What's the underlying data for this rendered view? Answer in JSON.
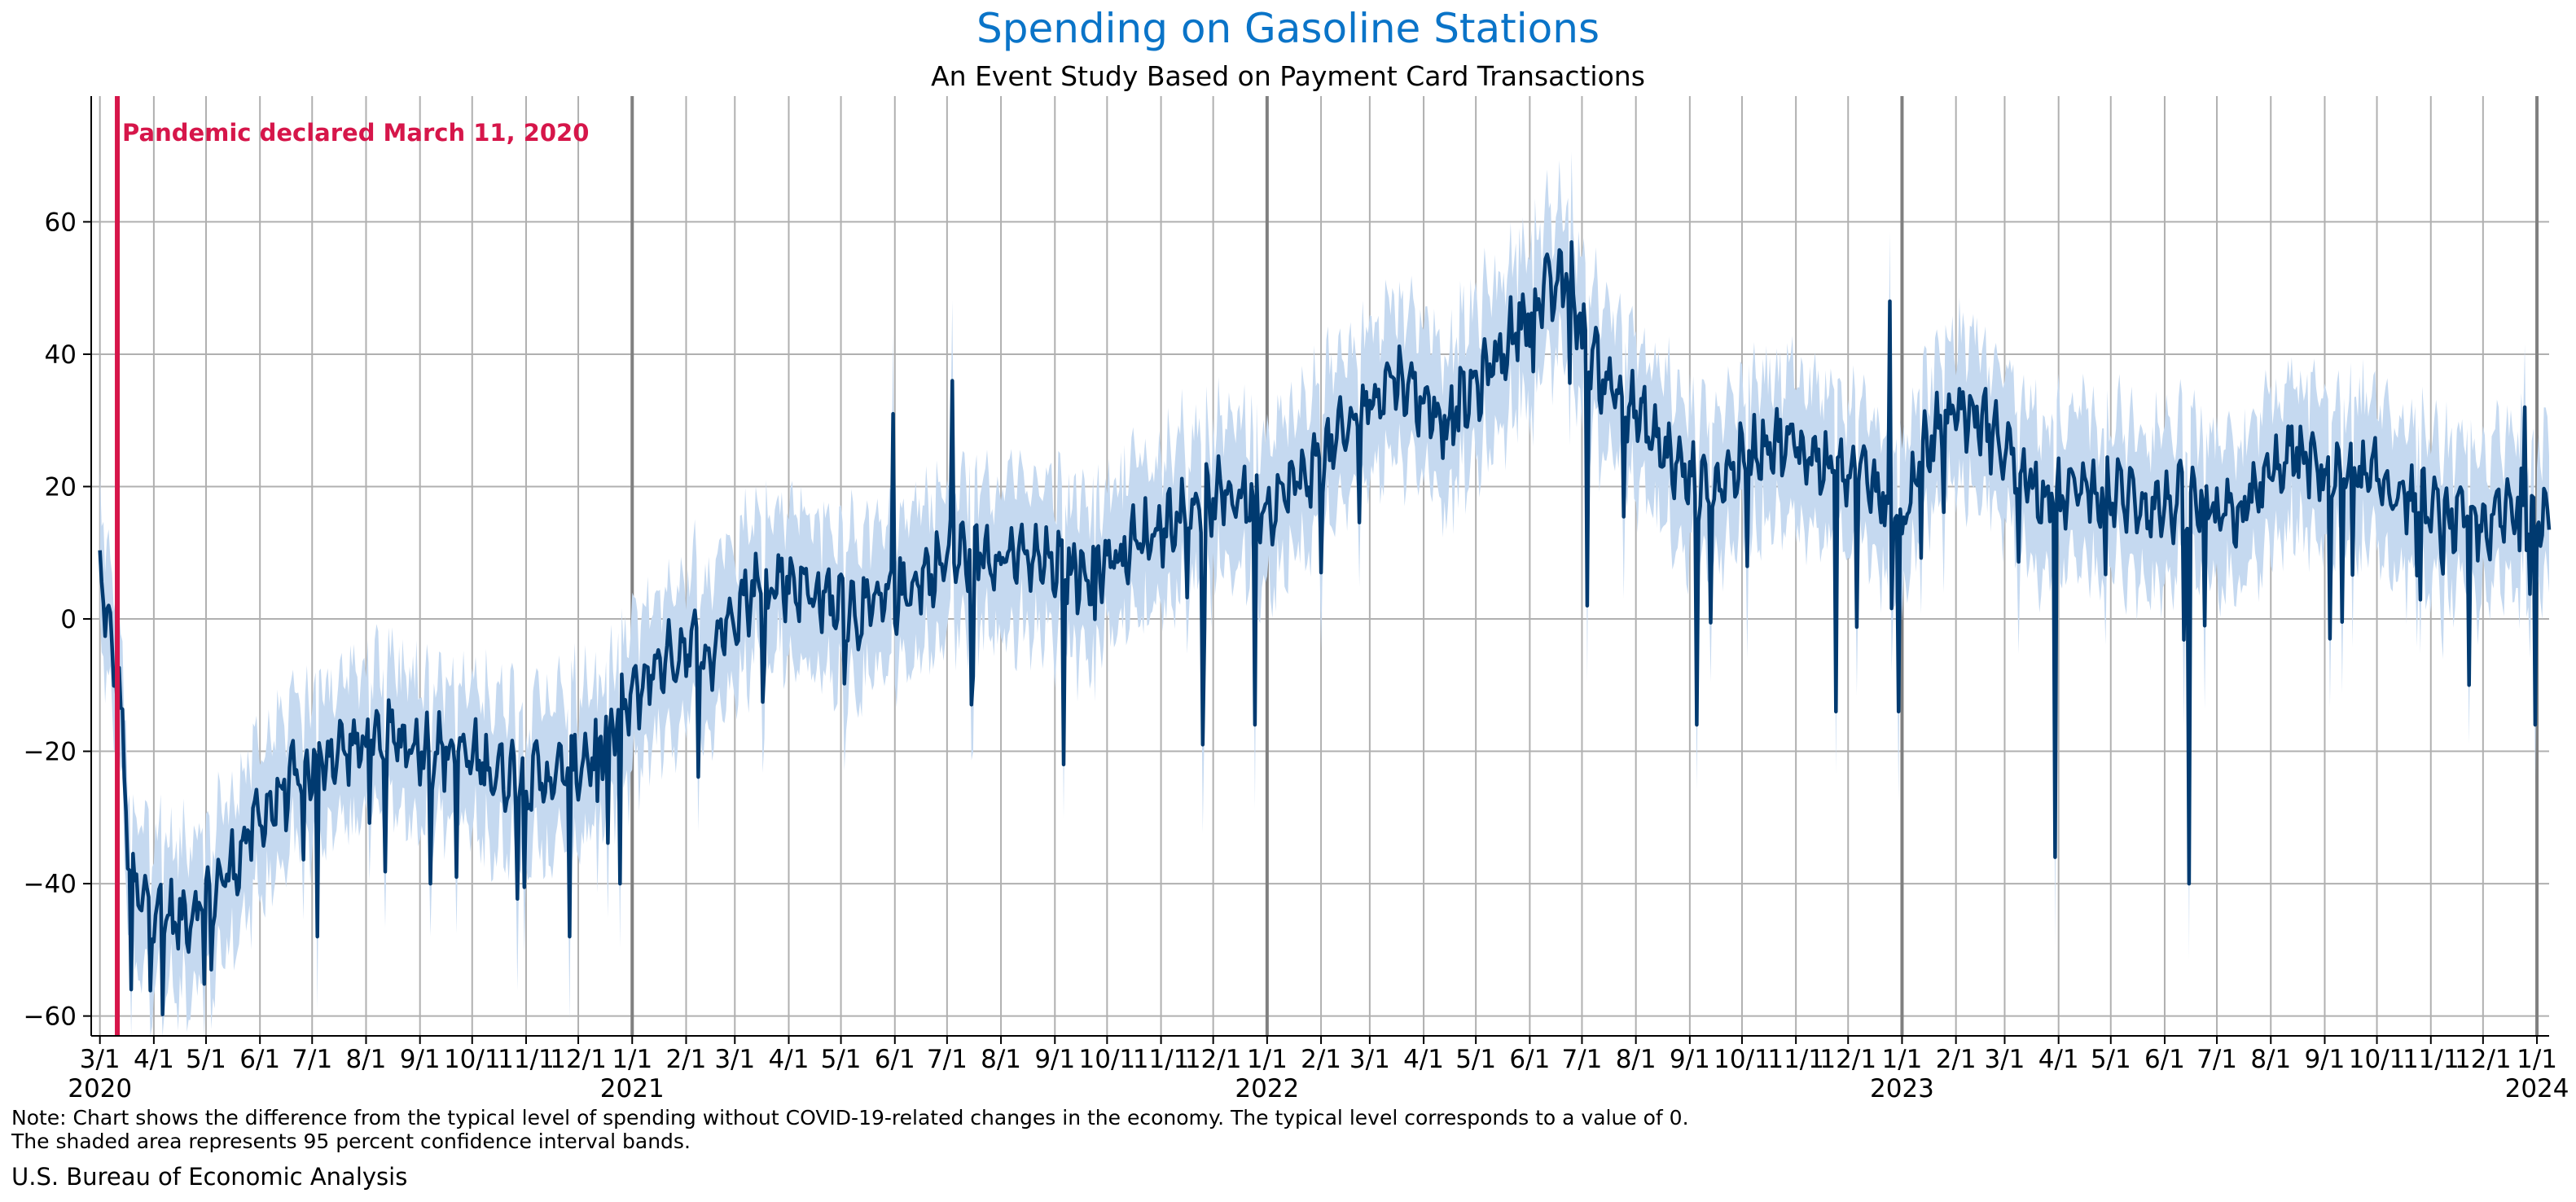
{
  "chart_data": {
    "type": "line",
    "title": "Spending on Gasoline Stations",
    "subtitle": "An Event Study Based on Payment Card Transactions",
    "xlabel": "",
    "ylabel": "",
    "ylim": [
      -63,
      79
    ],
    "yticks": [
      -60,
      -40,
      -20,
      0,
      20,
      40,
      60
    ],
    "grid": true,
    "xlim": [
      "2020-02-25",
      "2024-01-08"
    ],
    "month_tick_labels": [
      "3/1",
      "4/1",
      "5/1",
      "6/1",
      "7/1",
      "8/1",
      "9/1",
      "10/1",
      "11/1",
      "12/1",
      "1/1",
      "2/1",
      "3/1",
      "4/1",
      "5/1",
      "6/1",
      "7/1",
      "8/1",
      "9/1",
      "10/1",
      "11/1",
      "12/1",
      "1/1",
      "2/1",
      "3/1",
      "4/1",
      "5/1",
      "6/1",
      "7/1",
      "8/1",
      "9/1",
      "10/1",
      "11/1",
      "12/1",
      "1/1",
      "2/1",
      "3/1",
      "4/1",
      "5/1",
      "6/1",
      "7/1",
      "8/1",
      "9/1",
      "10/1",
      "11/1",
      "12/1",
      "1/1"
    ],
    "year_tick_labels": [
      "2020",
      "2021",
      "2022",
      "2023",
      "2024"
    ],
    "annotation": {
      "text": "Pandemic declared March 11, 2020",
      "date": "2020-03-11"
    },
    "series": [
      {
        "name": "",
        "color": "#003a70",
        "band_color": "#c5d9f0",
        "ci_half_width": 10,
        "points": [
          [
            "2020-03-01",
            8
          ],
          [
            "2020-03-08",
            -6
          ],
          [
            "2020-03-12",
            -9
          ],
          [
            "2020-03-16",
            -30
          ],
          [
            "2020-03-21",
            -42
          ],
          [
            "2020-04-01",
            -43
          ],
          [
            "2020-04-15",
            -46
          ],
          [
            "2020-05-01",
            -42
          ],
          [
            "2020-05-15",
            -38
          ],
          [
            "2020-06-01",
            -30
          ],
          [
            "2020-06-15",
            -26
          ],
          [
            "2020-07-01",
            -22
          ],
          [
            "2020-07-15",
            -20
          ],
          [
            "2020-08-01",
            -19
          ],
          [
            "2020-08-15",
            -18
          ],
          [
            "2020-09-01",
            -19
          ],
          [
            "2020-09-15",
            -20
          ],
          [
            "2020-10-01",
            -21
          ],
          [
            "2020-10-15",
            -23
          ],
          [
            "2020-11-01",
            -24
          ],
          [
            "2020-11-15",
            -24
          ],
          [
            "2020-12-01",
            -22
          ],
          [
            "2020-12-15",
            -19
          ],
          [
            "2021-01-01",
            -12
          ],
          [
            "2021-01-15",
            -7
          ],
          [
            "2021-02-01",
            -4
          ],
          [
            "2021-02-15",
            -5
          ],
          [
            "2021-03-01",
            2
          ],
          [
            "2021-03-15",
            5
          ],
          [
            "2021-04-01",
            6
          ],
          [
            "2021-04-15",
            4
          ],
          [
            "2021-05-01",
            2
          ],
          [
            "2021-05-15",
            1
          ],
          [
            "2021-06-01",
            3
          ],
          [
            "2021-06-15",
            6
          ],
          [
            "2021-07-01",
            9
          ],
          [
            "2021-07-15",
            10
          ],
          [
            "2021-08-01",
            10
          ],
          [
            "2021-08-15",
            9
          ],
          [
            "2021-09-01",
            8
          ],
          [
            "2021-09-15",
            7
          ],
          [
            "2021-10-01",
            9
          ],
          [
            "2021-10-15",
            11
          ],
          [
            "2021-11-01",
            14
          ],
          [
            "2021-11-15",
            16
          ],
          [
            "2021-12-01",
            18
          ],
          [
            "2021-12-15",
            19
          ],
          [
            "2022-01-01",
            17
          ],
          [
            "2022-01-15",
            20
          ],
          [
            "2022-02-01",
            24
          ],
          [
            "2022-02-15",
            28
          ],
          [
            "2022-03-01",
            33
          ],
          [
            "2022-03-15",
            37
          ],
          [
            "2022-04-01",
            33
          ],
          [
            "2022-04-15",
            30
          ],
          [
            "2022-05-01",
            35
          ],
          [
            "2022-05-15",
            40
          ],
          [
            "2022-06-01",
            47
          ],
          [
            "2022-06-15",
            50
          ],
          [
            "2022-06-25",
            52
          ],
          [
            "2022-07-01",
            42
          ],
          [
            "2022-07-15",
            36
          ],
          [
            "2022-08-01",
            31
          ],
          [
            "2022-08-15",
            26
          ],
          [
            "2022-09-01",
            21
          ],
          [
            "2022-09-15",
            20
          ],
          [
            "2022-10-01",
            24
          ],
          [
            "2022-10-15",
            27
          ],
          [
            "2022-11-01",
            26
          ],
          [
            "2022-11-15",
            24
          ],
          [
            "2022-12-01",
            22
          ],
          [
            "2022-12-15",
            20
          ],
          [
            "2023-01-01",
            14
          ],
          [
            "2023-01-15",
            26
          ],
          [
            "2023-02-01",
            32
          ],
          [
            "2023-02-15",
            30
          ],
          [
            "2023-03-01",
            26
          ],
          [
            "2023-03-15",
            21
          ],
          [
            "2023-04-01",
            18
          ],
          [
            "2023-04-15",
            20
          ],
          [
            "2023-05-01",
            19
          ],
          [
            "2023-05-15",
            18
          ],
          [
            "2023-06-01",
            17
          ],
          [
            "2023-06-15",
            18
          ],
          [
            "2023-07-01",
            15
          ],
          [
            "2023-07-15",
            16
          ],
          [
            "2023-08-01",
            22
          ],
          [
            "2023-08-15",
            25
          ],
          [
            "2023-09-01",
            22
          ],
          [
            "2023-09-15",
            21
          ],
          [
            "2023-10-01",
            21
          ],
          [
            "2023-10-15",
            19
          ],
          [
            "2023-11-01",
            16
          ],
          [
            "2023-11-15",
            15
          ],
          [
            "2023-12-01",
            14
          ],
          [
            "2023-12-15",
            16
          ],
          [
            "2024-01-01",
            17
          ],
          [
            "2024-01-08",
            15
          ]
        ],
        "dips": [
          [
            "2020-03-19",
            -56
          ],
          [
            "2020-05-04",
            -53
          ],
          [
            "2020-07-04",
            -48
          ],
          [
            "2020-09-07",
            -40
          ],
          [
            "2020-11-26",
            -48
          ],
          [
            "2020-12-25",
            -40
          ],
          [
            "2021-05-31",
            31
          ],
          [
            "2021-07-04",
            36
          ],
          [
            "2021-09-06",
            -22
          ],
          [
            "2021-11-25",
            -19
          ],
          [
            "2021-12-25",
            -16
          ],
          [
            "2022-07-04",
            2
          ],
          [
            "2022-09-05",
            -16
          ],
          [
            "2022-11-24",
            -14
          ],
          [
            "2022-12-25",
            48
          ],
          [
            "2022-12-30",
            -14
          ],
          [
            "2023-03-30",
            -36
          ],
          [
            "2023-06-15",
            -40
          ],
          [
            "2023-09-04",
            -3
          ],
          [
            "2023-11-23",
            -10
          ],
          [
            "2023-12-25",
            32
          ],
          [
            "2023-12-31",
            -16
          ]
        ]
      }
    ]
  },
  "note_line_1": "Note: Chart shows the difference from the typical level of spending without COVID-19-related changes in the economy. The typical level corresponds to a value of 0.",
  "note_line_2": "The shaded area represents 95 percent confidence interval bands.",
  "source": "U.S. Bureau of Economic Analysis"
}
